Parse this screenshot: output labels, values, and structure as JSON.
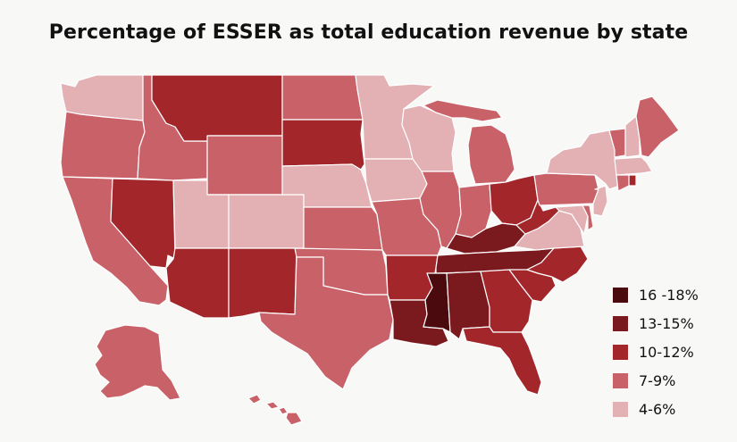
{
  "title": "Percentage of ESSER as total education revenue by state",
  "legend": [
    {
      "label": "16 -18%",
      "color": "#4a0a0e"
    },
    {
      "label": "13-15%",
      "color": "#7b1a1e"
    },
    {
      "label": "10-12%",
      "color": "#a3262b"
    },
    {
      "label": "7-9%",
      "color": "#c96169"
    },
    {
      "label": "4-6%",
      "color": "#e3b0b4"
    }
  ],
  "bins": {
    "b1": "#4a0a0e",
    "b2": "#7b1a1e",
    "b3": "#a3262b",
    "b4": "#c96169",
    "b5": "#e3b0b4"
  },
  "states": [
    {
      "name": "Washington",
      "bin": "b5"
    },
    {
      "name": "Oregon",
      "bin": "b4"
    },
    {
      "name": "California",
      "bin": "b4"
    },
    {
      "name": "Nevada",
      "bin": "b3"
    },
    {
      "name": "Idaho",
      "bin": "b4"
    },
    {
      "name": "Montana",
      "bin": "b3"
    },
    {
      "name": "Wyoming",
      "bin": "b4"
    },
    {
      "name": "Utah",
      "bin": "b5"
    },
    {
      "name": "Colorado",
      "bin": "b5"
    },
    {
      "name": "Arizona",
      "bin": "b3"
    },
    {
      "name": "New Mexico",
      "bin": "b3"
    },
    {
      "name": "North Dakota",
      "bin": "b4"
    },
    {
      "name": "South Dakota",
      "bin": "b3"
    },
    {
      "name": "Nebraska",
      "bin": "b5"
    },
    {
      "name": "Kansas",
      "bin": "b4"
    },
    {
      "name": "Oklahoma",
      "bin": "b4"
    },
    {
      "name": "Texas",
      "bin": "b4"
    },
    {
      "name": "Minnesota",
      "bin": "b5"
    },
    {
      "name": "Iowa",
      "bin": "b5"
    },
    {
      "name": "Missouri",
      "bin": "b4"
    },
    {
      "name": "Arkansas",
      "bin": "b3"
    },
    {
      "name": "Louisiana",
      "bin": "b2"
    },
    {
      "name": "Wisconsin",
      "bin": "b5"
    },
    {
      "name": "Illinois",
      "bin": "b4"
    },
    {
      "name": "Michigan",
      "bin": "b4"
    },
    {
      "name": "Indiana",
      "bin": "b4"
    },
    {
      "name": "Ohio",
      "bin": "b3"
    },
    {
      "name": "Kentucky",
      "bin": "b2"
    },
    {
      "name": "Tennessee",
      "bin": "b2"
    },
    {
      "name": "Mississippi",
      "bin": "b1"
    },
    {
      "name": "Alabama",
      "bin": "b2"
    },
    {
      "name": "Georgia",
      "bin": "b3"
    },
    {
      "name": "Florida",
      "bin": "b3"
    },
    {
      "name": "South Carolina",
      "bin": "b3"
    },
    {
      "name": "North Carolina",
      "bin": "b3"
    },
    {
      "name": "Virginia",
      "bin": "b5"
    },
    {
      "name": "West Virginia",
      "bin": "b3"
    },
    {
      "name": "Pennsylvania",
      "bin": "b4"
    },
    {
      "name": "New York",
      "bin": "b5"
    },
    {
      "name": "Vermont",
      "bin": "b4"
    },
    {
      "name": "New Hampshire",
      "bin": "b5"
    },
    {
      "name": "Maine",
      "bin": "b4"
    },
    {
      "name": "Massachusetts",
      "bin": "b5"
    },
    {
      "name": "Rhode Island",
      "bin": "b3"
    },
    {
      "name": "Connecticut",
      "bin": "b4"
    },
    {
      "name": "New Jersey",
      "bin": "b5"
    },
    {
      "name": "Delaware",
      "bin": "b4"
    },
    {
      "name": "Maryland",
      "bin": "b5"
    },
    {
      "name": "Alaska",
      "bin": "b4"
    },
    {
      "name": "Hawaii",
      "bin": "b4"
    }
  ]
}
